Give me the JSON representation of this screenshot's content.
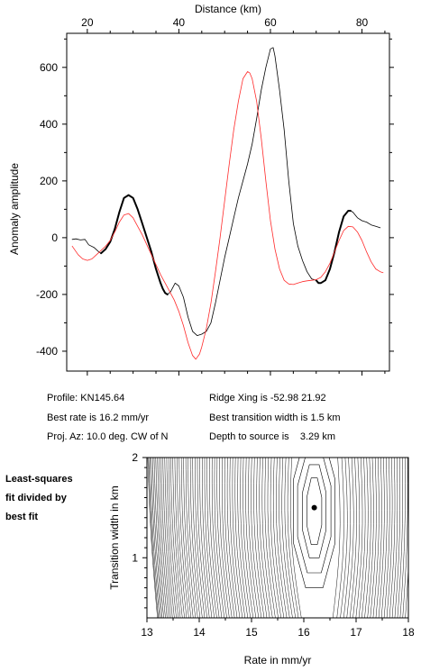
{
  "chart_data": [
    {
      "type": "line",
      "xlabel": "Distance (km)",
      "ylabel": "Anomaly amplitude",
      "xlim": [
        15.5,
        86
      ],
      "ylim": [
        -470,
        720
      ],
      "xticks": [
        20,
        40,
        60,
        80
      ],
      "yticks": [
        -400,
        -200,
        0,
        200,
        400,
        600
      ],
      "series": [
        {
          "color": "#000000",
          "segments": [
            {
              "width": "thin",
              "points": [
                [
                  16.7,
                  -6
                ],
                [
                  17.5,
                  -4
                ],
                [
                  18.5,
                  -8
                ],
                [
                  19.5,
                  -6
                ],
                [
                  20.3,
                  -25
                ],
                [
                  21.5,
                  -35
                ],
                [
                  22.5,
                  -50
                ],
                [
                  23.0,
                  -55
                ]
              ]
            },
            {
              "width": "thick",
              "points": [
                [
                  23.0,
                  -55
                ],
                [
                  24.0,
                  -40
                ],
                [
                  25.0,
                  -15
                ],
                [
                  26.0,
                  30
                ],
                [
                  27.0,
                  90
                ],
                [
                  28.0,
                  140
                ],
                [
                  29.0,
                  150
                ],
                [
                  30.0,
                  140
                ],
                [
                  31.0,
                  100
                ],
                [
                  32.0,
                  50
                ],
                [
                  33.0,
                  0
                ],
                [
                  34.0,
                  -50
                ],
                [
                  35.0,
                  -110
                ],
                [
                  36.0,
                  -160
                ],
                [
                  36.5,
                  -180
                ],
                [
                  37.0,
                  -195
                ],
                [
                  37.5,
                  -200
                ]
              ]
            },
            {
              "width": "thin",
              "points": [
                [
                  37.5,
                  -200
                ],
                [
                  38.2,
                  -190
                ],
                [
                  39.2,
                  -160
                ],
                [
                  40.0,
                  -170
                ],
                [
                  41.0,
                  -210
                ],
                [
                  42.0,
                  -280
                ],
                [
                  43.0,
                  -330
                ],
                [
                  44.0,
                  -345
                ],
                [
                  45.0,
                  -340
                ],
                [
                  46.0,
                  -330
                ],
                [
                  47.0,
                  -300
                ],
                [
                  48.0,
                  -230
                ],
                [
                  49.0,
                  -150
                ],
                [
                  50.0,
                  -70
                ],
                [
                  51.0,
                  0
                ],
                [
                  52.0,
                  70
                ],
                [
                  53.0,
                  140
                ],
                [
                  54.0,
                  200
                ],
                [
                  55.0,
                  260
                ],
                [
                  56.0,
                  330
                ],
                [
                  57.0,
                  420
                ],
                [
                  58.0,
                  520
                ],
                [
                  59.0,
                  600
                ],
                [
                  60.0,
                  665
                ],
                [
                  60.6,
                  670
                ],
                [
                  61.0,
                  640
                ],
                [
                  62.0,
                  520
                ],
                [
                  63.0,
                  380
                ],
                [
                  64.0,
                  200
                ],
                [
                  65.0,
                  50
                ],
                [
                  66.0,
                  -30
                ],
                [
                  67.0,
                  -80
                ],
                [
                  68.0,
                  -120
                ],
                [
                  69.0,
                  -145
                ],
                [
                  70.0,
                  -150
                ]
              ]
            },
            {
              "width": "thick",
              "points": [
                [
                  70.0,
                  -150
                ],
                [
                  70.5,
                  -160
                ],
                [
                  71.0,
                  -160
                ],
                [
                  72.0,
                  -150
                ],
                [
                  73.0,
                  -110
                ],
                [
                  74.0,
                  -50
                ],
                [
                  75.0,
                  20
                ],
                [
                  76.0,
                  75
                ],
                [
                  77.0,
                  95
                ],
                [
                  77.5,
                  95
                ]
              ]
            },
            {
              "width": "thin",
              "points": [
                [
                  77.5,
                  95
                ],
                [
                  78.0,
                  90
                ],
                [
                  79.0,
                  70
                ],
                [
                  80.0,
                  60
                ],
                [
                  81.0,
                  55
                ],
                [
                  82.0,
                  45
                ],
                [
                  83.0,
                  40
                ],
                [
                  84.0,
                  35
                ]
              ]
            }
          ]
        },
        {
          "color": "#ff2a2a",
          "segments": [
            {
              "width": "thin",
              "points": [
                [
                  16.7,
                  -30
                ],
                [
                  18.0,
                  -60
                ],
                [
                  19.0,
                  -75
                ],
                [
                  20.0,
                  -80
                ],
                [
                  21.0,
                  -75
                ],
                [
                  22.0,
                  -60
                ],
                [
                  23.0,
                  -45
                ],
                [
                  24.0,
                  -30
                ],
                [
                  25.0,
                  -10
                ],
                [
                  26.0,
                  20
                ],
                [
                  27.0,
                  55
                ],
                [
                  28.0,
                  80
                ],
                [
                  29.0,
                  85
                ],
                [
                  30.0,
                  70
                ],
                [
                  31.0,
                  40
                ],
                [
                  32.0,
                  10
                ],
                [
                  33.0,
                  -25
                ],
                [
                  34.0,
                  -60
                ],
                [
                  35.0,
                  -95
                ],
                [
                  36.0,
                  -130
                ],
                [
                  37.0,
                  -160
                ],
                [
                  38.0,
                  -190
                ],
                [
                  39.0,
                  -220
                ],
                [
                  40.0,
                  -260
                ],
                [
                  41.0,
                  -310
                ],
                [
                  42.0,
                  -370
                ],
                [
                  43.0,
                  -415
                ],
                [
                  43.7,
                  -428
                ],
                [
                  44.5,
                  -410
                ],
                [
                  45.0,
                  -385
                ],
                [
                  46.0,
                  -320
                ],
                [
                  47.0,
                  -230
                ],
                [
                  48.0,
                  -120
                ],
                [
                  49.0,
                  0
                ],
                [
                  50.0,
                  130
                ],
                [
                  51.0,
                  260
                ],
                [
                  52.0,
                  380
                ],
                [
                  53.0,
                  480
                ],
                [
                  54.0,
                  560
                ],
                [
                  55.0,
                  585
                ],
                [
                  55.5,
                  580
                ],
                [
                  56.0,
                  560
                ],
                [
                  57.0,
                  480
                ],
                [
                  58.0,
                  350
                ],
                [
                  59.0,
                  200
                ],
                [
                  60.0,
                  60
                ],
                [
                  61.0,
                  -40
                ],
                [
                  62.0,
                  -110
                ],
                [
                  63.0,
                  -150
                ],
                [
                  64.0,
                  -163
                ],
                [
                  65.0,
                  -165
                ],
                [
                  66.0,
                  -160
                ],
                [
                  67.0,
                  -155
                ],
                [
                  68.0,
                  -152
                ],
                [
                  69.0,
                  -150
                ],
                [
                  70.0,
                  -148
                ],
                [
                  71.0,
                  -140
                ],
                [
                  72.0,
                  -120
                ],
                [
                  73.0,
                  -90
                ],
                [
                  74.0,
                  -50
                ],
                [
                  75.0,
                  -10
                ],
                [
                  76.0,
                  25
                ],
                [
                  77.0,
                  40
                ],
                [
                  78.0,
                  38
                ],
                [
                  79.0,
                  20
                ],
                [
                  80.0,
                  -10
                ],
                [
                  81.0,
                  -50
                ],
                [
                  82.0,
                  -85
                ],
                [
                  83.0,
                  -110
                ],
                [
                  84.0,
                  -120
                ],
                [
                  84.6,
                  -123
                ]
              ]
            }
          ]
        }
      ]
    },
    {
      "type": "contour",
      "xlabel": "Rate in mm/yr",
      "ylabel": "Transition width in km",
      "xlim": [
        13,
        18
      ],
      "ylim": [
        0.4,
        2
      ],
      "xticks": [
        13,
        14,
        15,
        16,
        17,
        18
      ],
      "yticks": [
        1,
        2
      ],
      "best_fit": {
        "rate": 16.2,
        "width": 1.5
      }
    }
  ],
  "info": {
    "profile": "Profile: KN145.64",
    "best_rate": "Best rate is 16.2 mm/yr",
    "proj_az": "Proj. Az: 10.0 deg. CW of N",
    "ridge": "Ridge Xing is -52.98 21.92",
    "best_width": "Best transition width is 1.5 km",
    "depth": "Depth to source is    3.29 km"
  },
  "caption": {
    "line1": "Least-squares",
    "line2": "fit divided by",
    "line3": "best fit"
  }
}
